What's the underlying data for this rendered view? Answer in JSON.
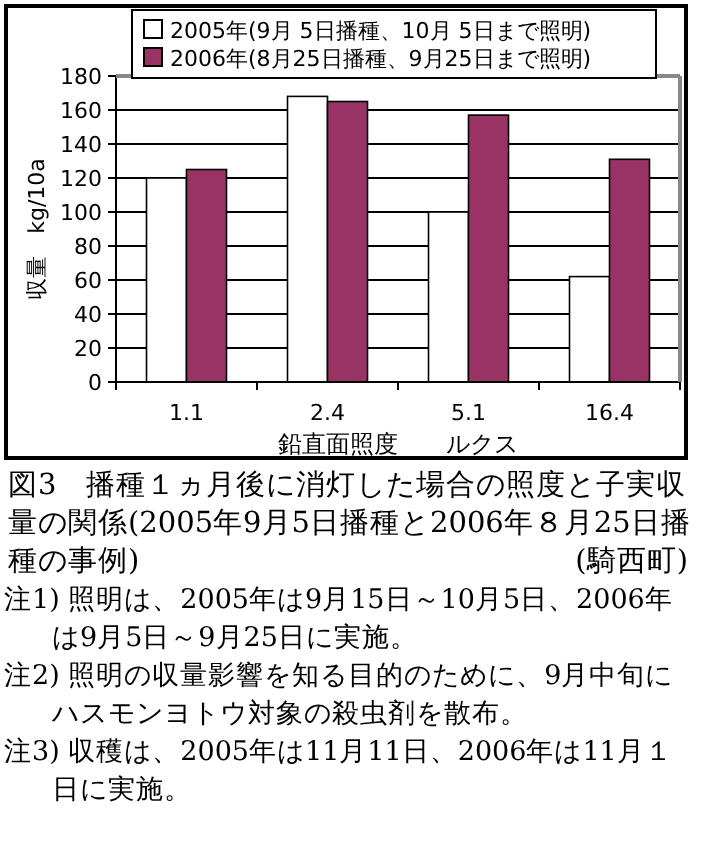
{
  "chart_data": {
    "type": "bar",
    "title": "図3　播種１ヵ月後に消灯した場合の照度と子実収量の関係(2005年9月5日播種と2006年８月25日播種の事例)",
    "xlabel": "鉛直面照度　　ルクス",
    "ylabel": "収量　kg/10a",
    "categories": [
      "1.1",
      "2.4",
      "5.1",
      "16.4"
    ],
    "series": [
      {
        "name": "2005年(9月 5日播種、10月 5日まで照明)",
        "color": "#ffffff",
        "values": [
          120,
          168,
          100,
          62
        ]
      },
      {
        "name": "2006年(8月25日播種、9月25日まで照明)",
        "color": "#993366",
        "values": [
          125,
          165,
          157,
          131
        ]
      }
    ],
    "ylim": [
      0,
      180
    ],
    "yticks": [
      0,
      20,
      40,
      60,
      80,
      100,
      120,
      140,
      160,
      180
    ],
    "grid": "y",
    "legend": "top",
    "annotations": [
      "(騎西町)",
      "注1) 照明は、2005年は9月15日～10月5日、2006年は9月5日～9月25日に実施。",
      "注2) 照明の収量影響を知る目的のために、9月中旬にハスモンヨトウ対象の殺虫剤を散布。",
      "注3) 収穫は、2005年は11月11日、2006年は11月１日に実施。"
    ]
  }
}
